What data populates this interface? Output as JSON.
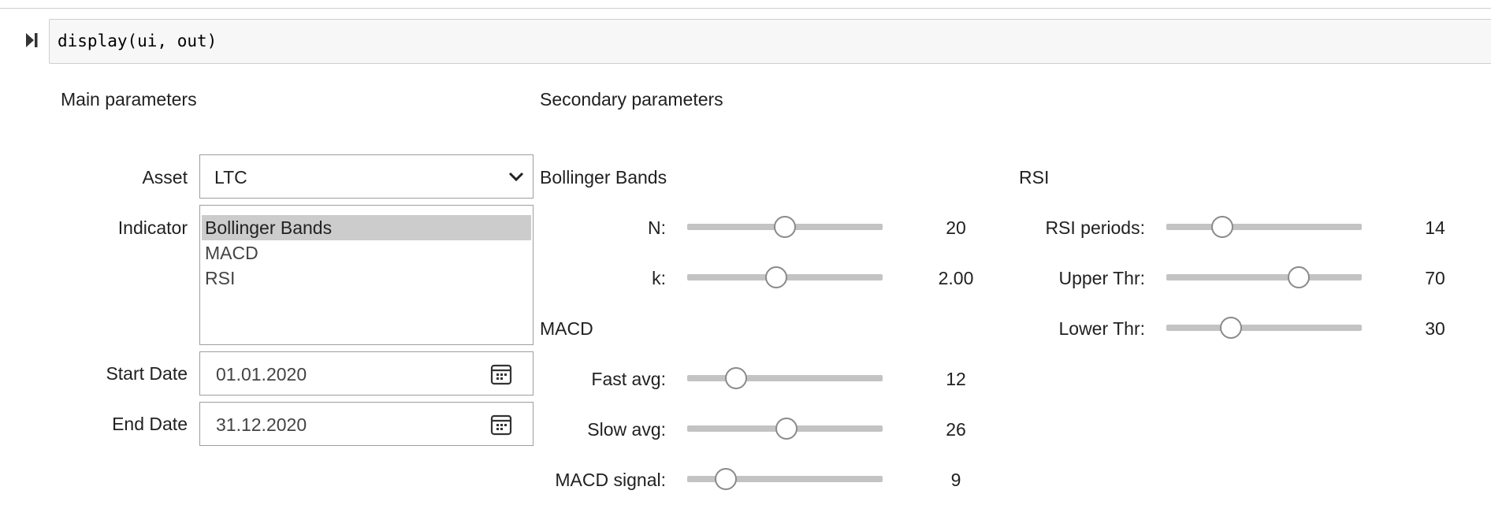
{
  "cell": {
    "code": "display(ui, out)"
  },
  "main": {
    "heading": "Main parameters",
    "asset": {
      "label": "Asset",
      "value": "LTC"
    },
    "indicator": {
      "label": "Indicator",
      "options": [
        "Bollinger Bands",
        "MACD",
        "RSI"
      ],
      "selected": "Bollinger Bands"
    },
    "start_date": {
      "label": "Start Date",
      "value": "01.01.2020"
    },
    "end_date": {
      "label": "End Date",
      "value": "31.12.2020"
    }
  },
  "secondary": {
    "heading": "Secondary parameters",
    "bollinger": {
      "title": "Bollinger Bands",
      "n": {
        "label": "N:",
        "value": "20",
        "fraction": 0.5
      },
      "k": {
        "label": "k:",
        "value": "2.00",
        "fraction": 0.45
      }
    },
    "macd": {
      "title": "MACD",
      "fast": {
        "label": "Fast avg:",
        "value": "12",
        "fraction": 0.22
      },
      "slow": {
        "label": "Slow avg:",
        "value": "26",
        "fraction": 0.51
      },
      "signal": {
        "label": "MACD signal:",
        "value": "9",
        "fraction": 0.16
      }
    },
    "rsi": {
      "title": "RSI",
      "periods": {
        "label": "RSI periods:",
        "value": "14",
        "fraction": 0.26
      },
      "upper": {
        "label": "Upper Thr:",
        "value": "70",
        "fraction": 0.7
      },
      "lower": {
        "label": "Lower Thr:",
        "value": "30",
        "fraction": 0.31
      }
    }
  },
  "colors": {
    "selected_option": "#cccccc",
    "slider_track": "#c3c3c3",
    "border": "#9e9e9e"
  }
}
